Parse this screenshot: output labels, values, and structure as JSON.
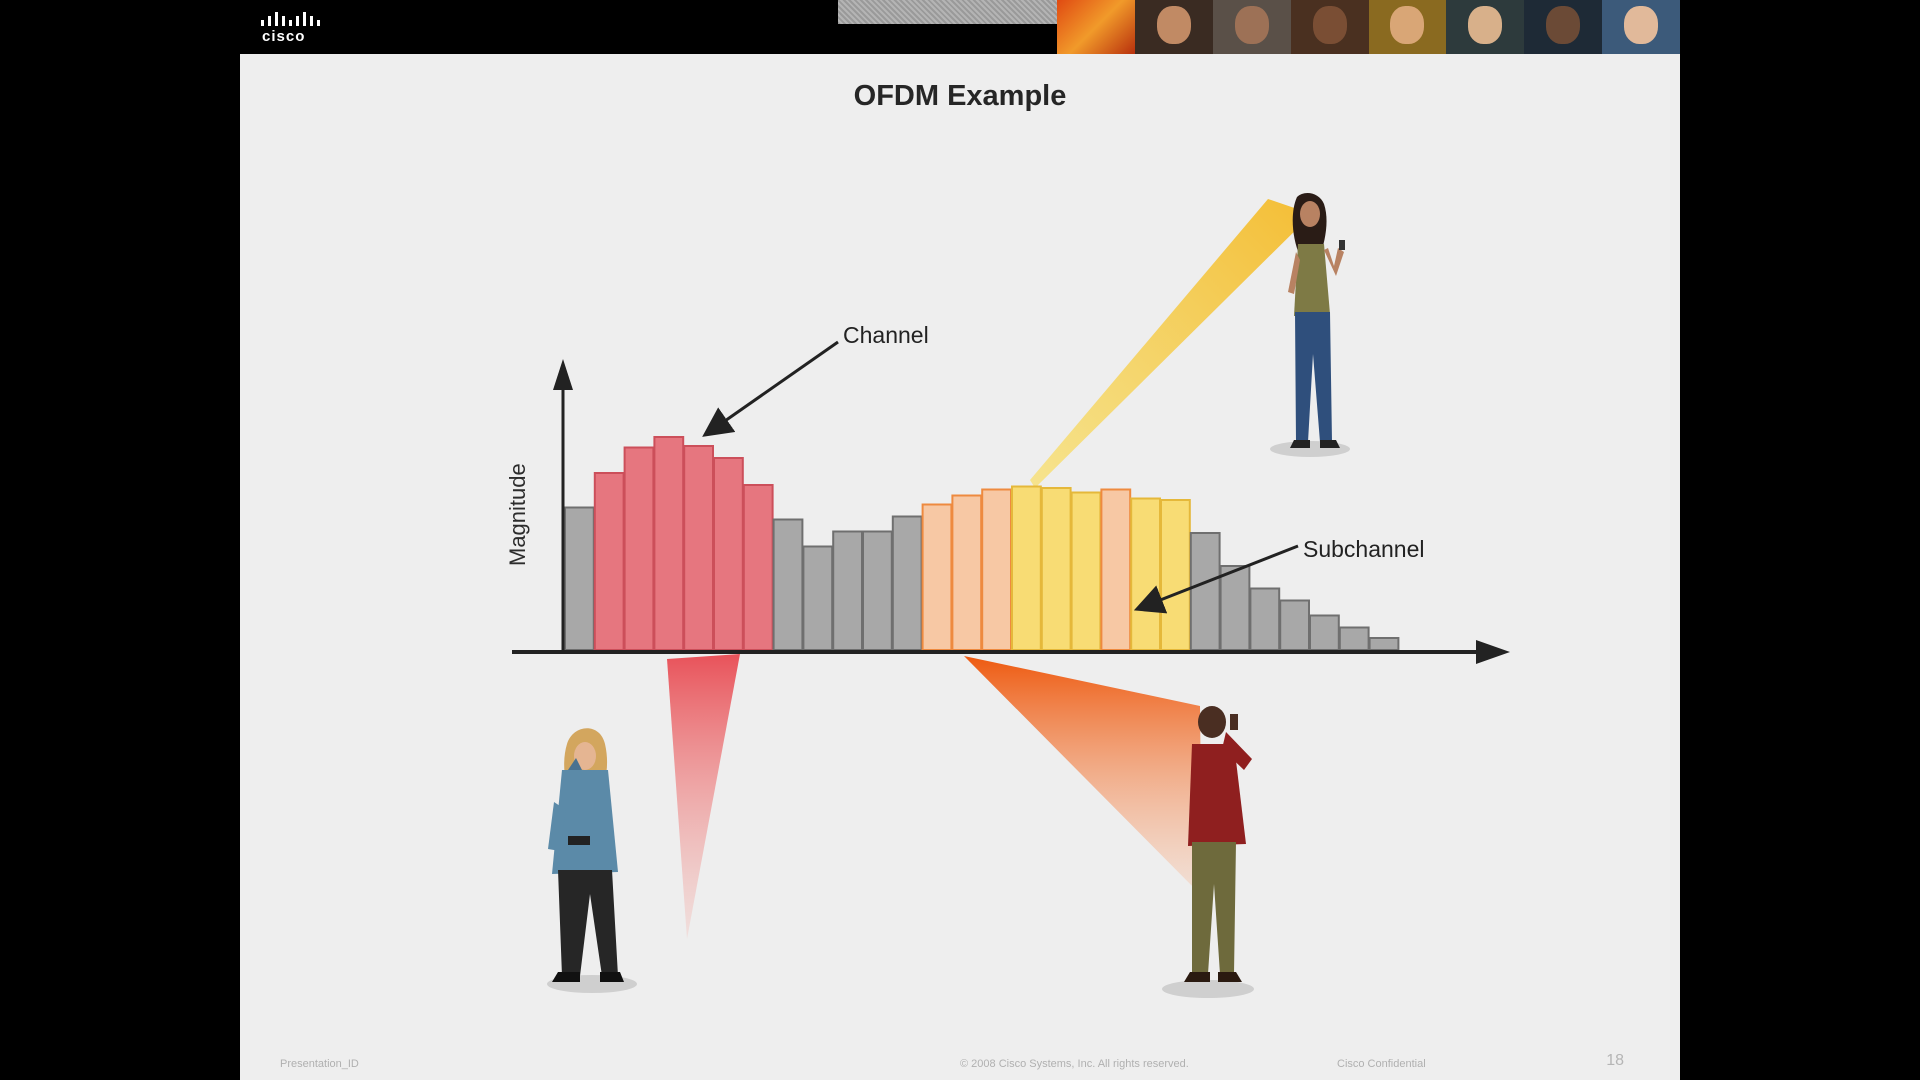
{
  "header": {
    "logo_text": "cisco"
  },
  "slide": {
    "title": "OFDM Example",
    "labels": {
      "channel": "Channel",
      "subchannel": "Subchannel",
      "y_axis": "Magnitude"
    },
    "footer": {
      "left": "Presentation_ID",
      "center": "© 2008 Cisco Systems, Inc. All rights reserved.",
      "right": "Cisco Confidential",
      "page_number": "18"
    }
  },
  "chart_data": {
    "type": "bar",
    "title": "OFDM Example",
    "ylabel": "Magnitude",
    "xlabel": "",
    "bars": [
      {
        "value": 95,
        "group": "grey"
      },
      {
        "value": 118,
        "group": "red"
      },
      {
        "value": 135,
        "group": "red"
      },
      {
        "value": 142,
        "group": "red"
      },
      {
        "value": 136,
        "group": "red"
      },
      {
        "value": 128,
        "group": "red"
      },
      {
        "value": 110,
        "group": "red"
      },
      {
        "value": 87,
        "group": "grey"
      },
      {
        "value": 69,
        "group": "grey"
      },
      {
        "value": 79,
        "group": "grey"
      },
      {
        "value": 79,
        "group": "grey"
      },
      {
        "value": 89,
        "group": "grey"
      },
      {
        "value": 97,
        "group": "orange"
      },
      {
        "value": 103,
        "group": "orange"
      },
      {
        "value": 107,
        "group": "orange"
      },
      {
        "value": 109,
        "group": "yellow"
      },
      {
        "value": 108,
        "group": "yellow"
      },
      {
        "value": 105,
        "group": "yellow"
      },
      {
        "value": 107,
        "group": "orange"
      },
      {
        "value": 101,
        "group": "yellow"
      },
      {
        "value": 100,
        "group": "yellow"
      },
      {
        "value": 78,
        "group": "grey"
      },
      {
        "value": 56,
        "group": "grey"
      },
      {
        "value": 41,
        "group": "grey"
      },
      {
        "value": 33,
        "group": "grey"
      },
      {
        "value": 23,
        "group": "grey"
      },
      {
        "value": 15,
        "group": "grey"
      },
      {
        "value": 8,
        "group": "grey"
      }
    ],
    "colors": {
      "grey": {
        "fill": "#a8a8a8",
        "stroke": "#6f6f6f"
      },
      "red": {
        "fill": "#e6767f",
        "stroke": "#cc4f5a"
      },
      "orange": {
        "fill": "#f7c8a4",
        "stroke": "#ee8a3f"
      },
      "yellow": {
        "fill": "#f8dc74",
        "stroke": "#e5b83a"
      }
    }
  }
}
